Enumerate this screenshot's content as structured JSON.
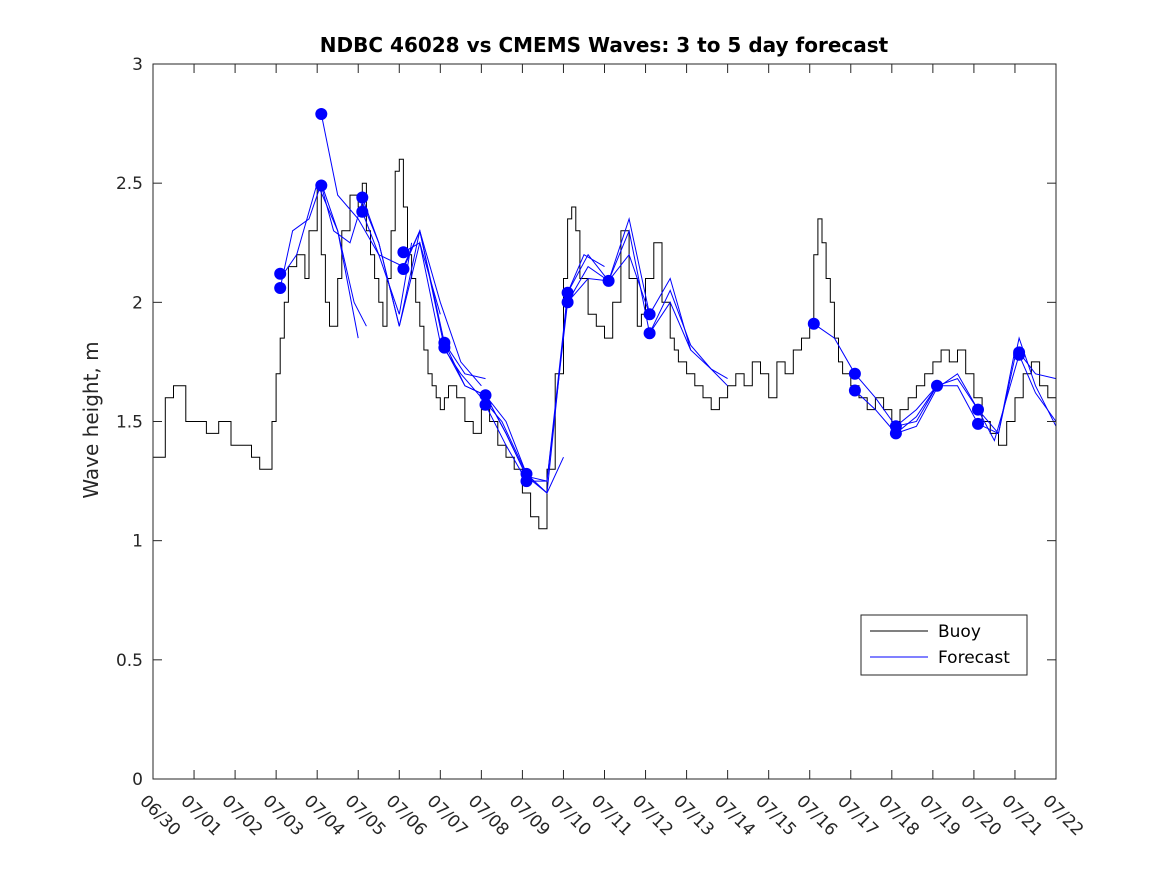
{
  "chart_data": {
    "type": "line",
    "title": "NDBC 46028 vs CMEMS Waves: 3 to 5 day forecast",
    "xlabel": "",
    "ylabel": "Wave height, m",
    "xlim": [
      "06/30",
      "07/22"
    ],
    "ylim": [
      0,
      3
    ],
    "x_tick_labels": [
      "06/30",
      "07/01",
      "07/02",
      "07/03",
      "07/04",
      "07/05",
      "07/06",
      "07/07",
      "07/08",
      "07/09",
      "07/10",
      "07/11",
      "07/12",
      "07/13",
      "07/14",
      "07/15",
      "07/16",
      "07/17",
      "07/18",
      "07/19",
      "07/20",
      "07/21",
      "07/22"
    ],
    "y_ticks": [
      0,
      0.5,
      1,
      1.5,
      2,
      2.5,
      3
    ],
    "y_tick_labels": [
      "0",
      "0.5",
      "1",
      "1.5",
      "2",
      "2.5",
      "3"
    ],
    "grid": false,
    "legend_placement": "bottom-right",
    "colors": {
      "buoy": "#000000",
      "forecast": "#0000ff"
    },
    "series": [
      {
        "name": "Buoy",
        "x_days": [
          0.0,
          0.3,
          0.5,
          0.8,
          1.0,
          1.3,
          1.6,
          1.9,
          2.1,
          2.4,
          2.6,
          2.9,
          3.0,
          3.1,
          3.2,
          3.3,
          3.5,
          3.7,
          3.8,
          4.0,
          4.1,
          4.2,
          4.3,
          4.5,
          4.6,
          4.8,
          5.0,
          5.1,
          5.2,
          5.3,
          5.4,
          5.5,
          5.6,
          5.7,
          5.8,
          5.9,
          6.0,
          6.1,
          6.2,
          6.3,
          6.4,
          6.5,
          6.6,
          6.7,
          6.8,
          6.9,
          7.0,
          7.1,
          7.2,
          7.4,
          7.6,
          7.8,
          8.0,
          8.2,
          8.4,
          8.6,
          8.8,
          9.0,
          9.2,
          9.4,
          9.6,
          9.8,
          10.0,
          10.1,
          10.2,
          10.3,
          10.4,
          10.6,
          10.8,
          11.0,
          11.2,
          11.4,
          11.6,
          11.8,
          11.9,
          12.0,
          12.2,
          12.4,
          12.6,
          12.7,
          12.8,
          13.0,
          13.2,
          13.4,
          13.6,
          13.8,
          14.0,
          14.2,
          14.4,
          14.6,
          14.8,
          15.0,
          15.2,
          15.4,
          15.6,
          15.8,
          16.0,
          16.1,
          16.2,
          16.3,
          16.4,
          16.5,
          16.6,
          16.7,
          16.8,
          17.0,
          17.2,
          17.4,
          17.6,
          17.8,
          18.0,
          18.2,
          18.4,
          18.6,
          18.8,
          19.0,
          19.2,
          19.4,
          19.6,
          19.8,
          20.0,
          20.2,
          20.4,
          20.6,
          20.8,
          21.0,
          21.2,
          21.4,
          21.6,
          21.8,
          22.0
        ],
        "values": [
          1.35,
          1.6,
          1.65,
          1.5,
          1.5,
          1.45,
          1.5,
          1.4,
          1.4,
          1.35,
          1.3,
          1.5,
          1.7,
          1.85,
          2.0,
          2.15,
          2.2,
          2.1,
          2.3,
          2.5,
          2.2,
          2.0,
          1.9,
          2.1,
          2.3,
          2.45,
          2.4,
          2.5,
          2.3,
          2.2,
          2.1,
          2.0,
          1.9,
          2.1,
          2.3,
          2.55,
          2.6,
          2.4,
          2.2,
          2.1,
          2.0,
          1.9,
          1.8,
          1.7,
          1.65,
          1.6,
          1.55,
          1.6,
          1.65,
          1.6,
          1.5,
          1.45,
          1.55,
          1.5,
          1.4,
          1.35,
          1.3,
          1.2,
          1.1,
          1.05,
          1.3,
          1.7,
          2.1,
          2.35,
          2.4,
          2.3,
          2.1,
          1.95,
          1.9,
          1.85,
          2.0,
          2.3,
          2.1,
          1.9,
          1.95,
          2.1,
          2.25,
          2.0,
          1.85,
          1.8,
          1.75,
          1.7,
          1.65,
          1.6,
          1.55,
          1.6,
          1.65,
          1.7,
          1.65,
          1.75,
          1.7,
          1.6,
          1.75,
          1.7,
          1.8,
          1.85,
          1.9,
          2.2,
          2.35,
          2.25,
          2.1,
          2.0,
          1.85,
          1.75,
          1.7,
          1.65,
          1.6,
          1.55,
          1.6,
          1.55,
          1.5,
          1.55,
          1.6,
          1.65,
          1.7,
          1.75,
          1.8,
          1.75,
          1.8,
          1.7,
          1.6,
          1.5,
          1.45,
          1.4,
          1.5,
          1.6,
          1.7,
          1.75,
          1.65,
          1.6,
          1.55
        ]
      },
      {
        "name": "Forecast",
        "runs": [
          {
            "x_days": [
              3.1,
              3.5,
              4.0,
              4.5,
              4.9,
              5.2
            ],
            "values": [
              2.1,
              2.2,
              2.5,
              2.3,
              2.0,
              1.9
            ]
          },
          {
            "x_days": [
              3.1,
              3.4,
              3.8,
              4.1,
              4.5,
              5.0
            ],
            "values": [
              2.06,
              2.3,
              2.35,
              2.5,
              2.3,
              1.85
            ]
          },
          {
            "x_days": [
              4.1,
              4.5,
              5.0,
              5.5,
              6.0,
              6.3
            ],
            "values": [
              2.79,
              2.45,
              2.35,
              2.2,
              1.95,
              2.25
            ]
          },
          {
            "x_days": [
              4.1,
              4.4,
              4.8,
              5.1,
              5.5,
              6.0,
              6.5,
              7.0
            ],
            "values": [
              2.49,
              2.3,
              2.25,
              2.42,
              2.25,
              1.9,
              2.25,
              1.95
            ]
          },
          {
            "x_days": [
              5.1,
              5.5,
              6.0,
              6.5,
              7.0,
              7.5,
              8.0
            ],
            "values": [
              2.44,
              2.25,
              1.9,
              2.3,
              2.0,
              1.75,
              1.65
            ]
          },
          {
            "x_days": [
              5.1,
              5.5,
              6.1,
              6.5,
              7.1,
              7.6,
              8.1
            ],
            "values": [
              2.38,
              2.2,
              2.15,
              2.3,
              1.83,
              1.7,
              1.68
            ]
          },
          {
            "x_days": [
              6.1,
              6.5,
              7.0,
              7.5,
              8.0,
              8.5,
              9.1
            ],
            "values": [
              2.21,
              2.25,
              1.83,
              1.7,
              1.6,
              1.5,
              1.28
            ]
          },
          {
            "x_days": [
              6.1,
              6.5,
              7.1,
              7.6,
              8.1,
              8.6,
              9.1
            ],
            "values": [
              2.14,
              2.3,
              1.81,
              1.65,
              1.61,
              1.45,
              1.27
            ]
          },
          {
            "x_days": [
              7.1,
              7.6,
              8.1,
              8.6,
              9.1,
              9.6,
              10.0
            ],
            "values": [
              1.83,
              1.65,
              1.61,
              1.5,
              1.28,
              1.2,
              1.35
            ]
          },
          {
            "x_days": [
              8.1,
              8.6,
              9.1,
              9.6,
              10.1,
              10.5,
              11.0
            ],
            "values": [
              1.61,
              1.45,
              1.27,
              1.2,
              2.04,
              2.2,
              2.15
            ]
          },
          {
            "x_days": [
              8.1,
              8.6,
              9.1,
              9.6,
              10.1,
              10.6,
              11.1
            ],
            "values": [
              1.57,
              1.4,
              1.25,
              1.25,
              2.0,
              2.1,
              2.09
            ]
          },
          {
            "x_days": [
              9.1,
              9.6,
              10.1,
              10.6,
              11.1,
              11.6,
              12.1
            ],
            "values": [
              1.27,
              1.25,
              2.04,
              2.2,
              2.09,
              2.35,
              1.95
            ]
          },
          {
            "x_days": [
              10.1,
              10.6,
              11.1,
              11.6,
              12.1,
              12.6,
              13.1
            ],
            "values": [
              2.0,
              2.15,
              2.09,
              2.3,
              1.87,
              2.0,
              1.8
            ]
          },
          {
            "x_days": [
              11.1,
              11.6,
              12.1,
              12.6,
              13.1,
              13.6,
              14.0
            ],
            "values": [
              2.09,
              2.2,
              1.95,
              2.1,
              1.8,
              1.72,
              1.68
            ]
          },
          {
            "x_days": [
              12.1,
              12.6,
              13.1,
              13.6,
              14.0
            ],
            "values": [
              1.87,
              2.05,
              1.82,
              1.72,
              1.65
            ]
          },
          {
            "x_days": [
              16.1,
              16.6,
              17.1,
              17.6,
              18.1,
              18.6,
              19.1
            ],
            "values": [
              1.91,
              1.85,
              1.7,
              1.6,
              1.48,
              1.55,
              1.65
            ]
          },
          {
            "x_days": [
              17.1,
              17.6,
              18.1,
              18.6,
              19.1,
              19.6,
              20.1
            ],
            "values": [
              1.63,
              1.55,
              1.45,
              1.52,
              1.65,
              1.68,
              1.55
            ]
          },
          {
            "x_days": [
              18.1,
              18.6,
              19.1,
              19.6,
              20.1,
              20.6,
              21.0
            ],
            "values": [
              1.48,
              1.5,
              1.65,
              1.65,
              1.49,
              1.45,
              1.8
            ]
          },
          {
            "x_days": [
              18.1,
              18.6,
              19.1,
              19.6,
              20.1,
              20.6,
              21.1,
              21.5,
              22.0
            ],
            "values": [
              1.45,
              1.48,
              1.64,
              1.7,
              1.55,
              1.45,
              1.85,
              1.65,
              1.48
            ]
          },
          {
            "x_days": [
              20.1,
              20.5,
              21.1,
              21.5,
              22.0
            ],
            "values": [
              1.55,
              1.42,
              1.78,
              1.62,
              1.5
            ]
          },
          {
            "x_days": [
              21.1,
              21.5,
              22.0
            ],
            "values": [
              1.79,
              1.7,
              1.68
            ]
          }
        ],
        "markers": {
          "x_days": [
            3.1,
            3.1,
            4.1,
            4.1,
            5.1,
            5.1,
            6.1,
            6.1,
            7.1,
            7.1,
            8.1,
            8.1,
            9.1,
            9.1,
            10.1,
            10.1,
            11.1,
            12.1,
            12.1,
            16.1,
            17.1,
            17.1,
            18.1,
            18.1,
            19.1,
            20.1,
            20.1,
            21.1,
            21.1
          ],
          "values": [
            2.12,
            2.06,
            2.79,
            2.49,
            2.44,
            2.38,
            2.21,
            2.14,
            1.83,
            1.81,
            1.61,
            1.57,
            1.28,
            1.25,
            2.04,
            2.0,
            2.09,
            1.95,
            1.87,
            1.91,
            1.7,
            1.63,
            1.48,
            1.45,
            1.65,
            1.55,
            1.49,
            1.79,
            1.78
          ]
        }
      }
    ]
  }
}
